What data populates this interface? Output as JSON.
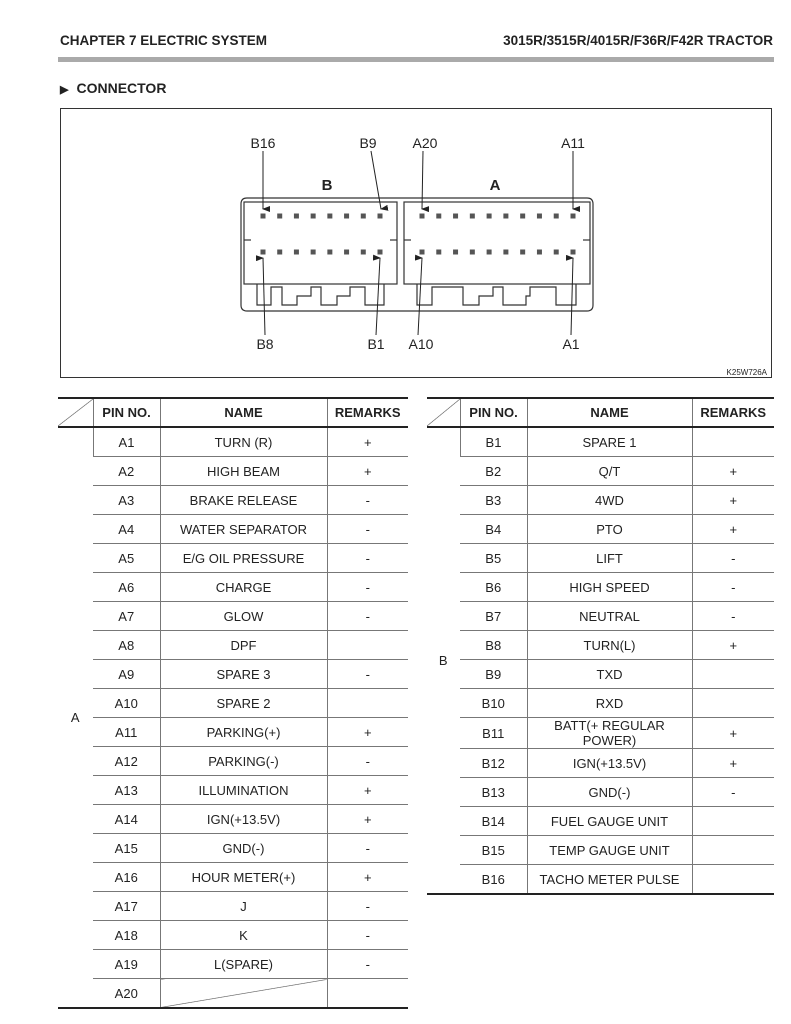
{
  "header": {
    "chapter": "CHAPTER 7  ELECTRIC SYSTEM",
    "model": "3015R/3515R/4015R/F36R/F42R TRACTOR"
  },
  "section": {
    "bullet": "▶",
    "title": "CONNECTOR"
  },
  "diagram": {
    "code": "K25W726A",
    "block_labels": {
      "b": "B",
      "a": "A"
    },
    "pin_labels": {
      "b16": "B16",
      "b9": "B9",
      "a20": "A20",
      "a11": "A11",
      "b8": "B8",
      "b1": "B1",
      "a10": "A10",
      "a1": "A1"
    }
  },
  "columns": {
    "pin": "PIN NO.",
    "name": "NAME",
    "remarks": "REMARKS"
  },
  "table_a": {
    "group": "A",
    "rows": [
      {
        "pin": "A1",
        "name": "TURN (R)",
        "remarks": "+"
      },
      {
        "pin": "A2",
        "name": "HIGH BEAM",
        "remarks": "+"
      },
      {
        "pin": "A3",
        "name": "BRAKE RELEASE",
        "remarks": "-"
      },
      {
        "pin": "A4",
        "name": "WATER SEPARATOR",
        "remarks": "-"
      },
      {
        "pin": "A5",
        "name": "E/G OIL PRESSURE",
        "remarks": "-"
      },
      {
        "pin": "A6",
        "name": "CHARGE",
        "remarks": "-"
      },
      {
        "pin": "A7",
        "name": "GLOW",
        "remarks": "-"
      },
      {
        "pin": "A8",
        "name": "DPF",
        "remarks": ""
      },
      {
        "pin": "A9",
        "name": "SPARE 3",
        "remarks": "-"
      },
      {
        "pin": "A10",
        "name": "SPARE 2",
        "remarks": ""
      },
      {
        "pin": "A11",
        "name": "PARKING(+)",
        "remarks": "+"
      },
      {
        "pin": "A12",
        "name": "PARKING(-)",
        "remarks": "-"
      },
      {
        "pin": "A13",
        "name": "ILLUMINATION",
        "remarks": "+"
      },
      {
        "pin": "A14",
        "name": "IGN(+13.5V)",
        "remarks": "+"
      },
      {
        "pin": "A15",
        "name": "GND(-)",
        "remarks": "-"
      },
      {
        "pin": "A16",
        "name": "HOUR METER(+)",
        "remarks": "+"
      },
      {
        "pin": "A17",
        "name": "J",
        "remarks": "-"
      },
      {
        "pin": "A18",
        "name": "K",
        "remarks": "-"
      },
      {
        "pin": "A19",
        "name": "L(SPARE)",
        "remarks": "-"
      },
      {
        "pin": "A20",
        "name": "",
        "remarks": "",
        "name_slashed": true
      }
    ]
  },
  "table_b": {
    "group": "B",
    "rows": [
      {
        "pin": "B1",
        "name": "SPARE 1",
        "remarks": ""
      },
      {
        "pin": "B2",
        "name": "Q/T",
        "remarks": "+"
      },
      {
        "pin": "B3",
        "name": "4WD",
        "remarks": "+"
      },
      {
        "pin": "B4",
        "name": "PTO",
        "remarks": "+"
      },
      {
        "pin": "B5",
        "name": "LIFT",
        "remarks": "-"
      },
      {
        "pin": "B6",
        "name": "HIGH SPEED",
        "remarks": "-"
      },
      {
        "pin": "B7",
        "name": "NEUTRAL",
        "remarks": "-"
      },
      {
        "pin": "B8",
        "name": "TURN(L)",
        "remarks": "+"
      },
      {
        "pin": "B9",
        "name": "TXD",
        "remarks": ""
      },
      {
        "pin": "B10",
        "name": "RXD",
        "remarks": ""
      },
      {
        "pin": "B11",
        "name": "BATT(+ REGULAR POWER)",
        "remarks": "+"
      },
      {
        "pin": "B12",
        "name": "IGN(+13.5V)",
        "remarks": "+"
      },
      {
        "pin": "B13",
        "name": "GND(-)",
        "remarks": "-"
      },
      {
        "pin": "B14",
        "name": "FUEL GAUGE UNIT",
        "remarks": ""
      },
      {
        "pin": "B15",
        "name": "TEMP GAUGE UNIT",
        "remarks": ""
      },
      {
        "pin": "B16",
        "name": "TACHO METER PULSE",
        "remarks": ""
      }
    ]
  }
}
